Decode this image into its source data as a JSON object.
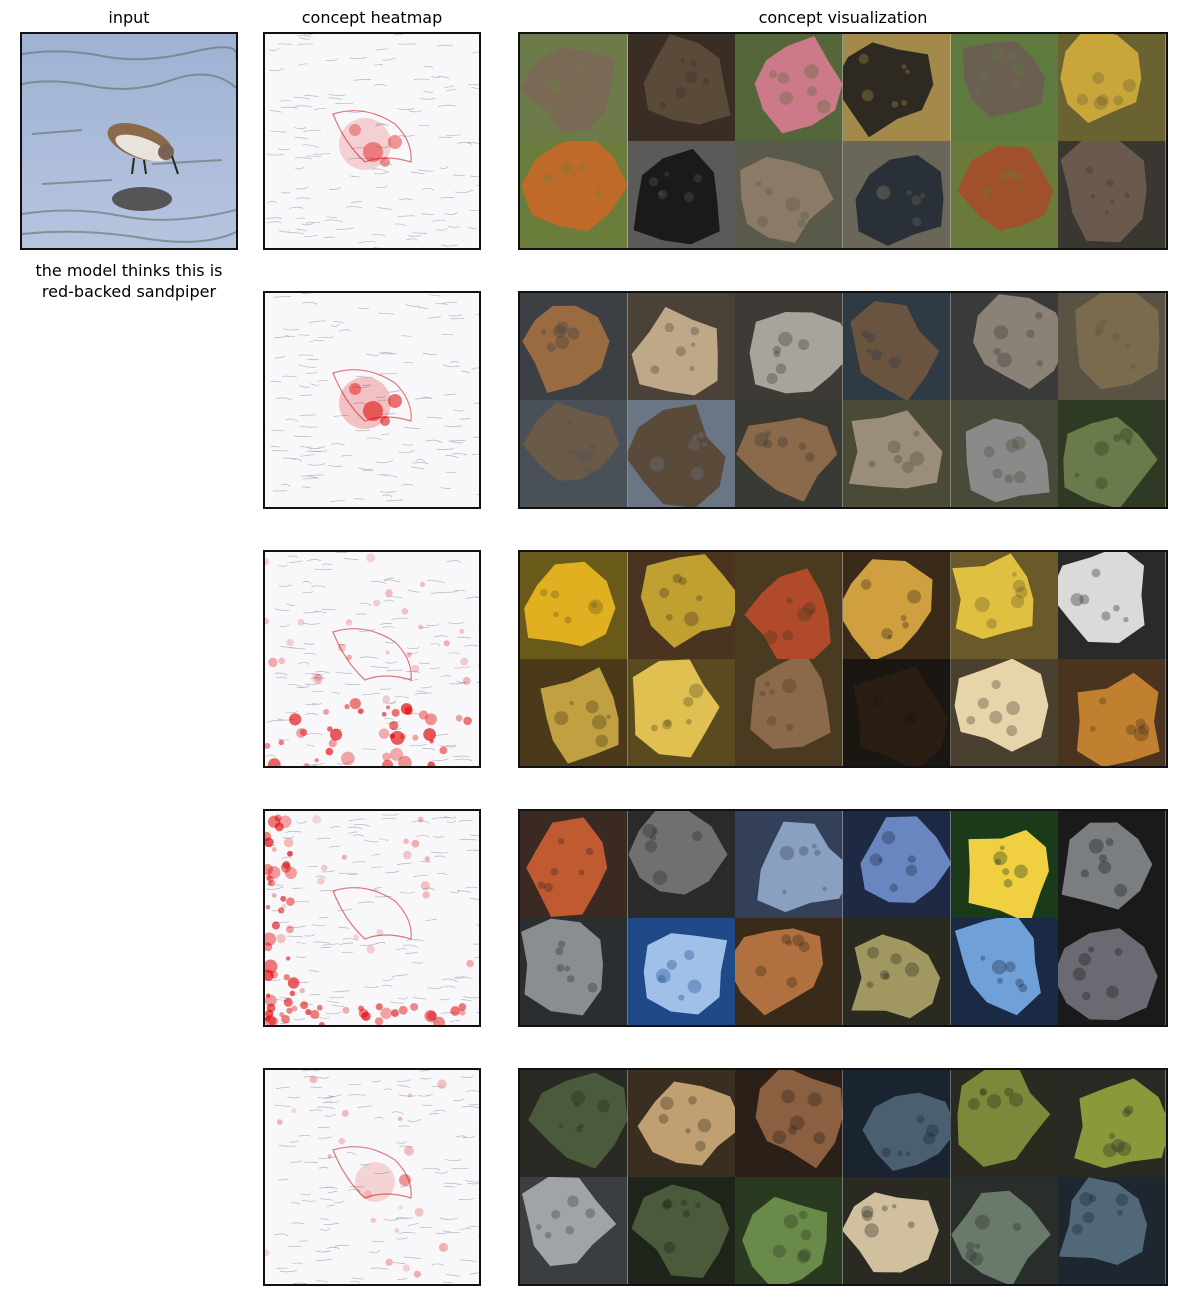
{
  "headers": {
    "input": "input",
    "heatmap": "concept heatmap",
    "visualization": "concept visualization"
  },
  "caption": "the model thinks this is\nred-backed sandpiper",
  "concepts": [
    {
      "id": 1,
      "heat_intensity": "focused-bird",
      "tiles": [
        [
          "#6d7a4a",
          "#7a6a55"
        ],
        [
          "#3a2e24",
          "#5a4a3a"
        ],
        [
          "#55663a",
          "#cc7a8a"
        ],
        [
          "#a38a4a",
          "#2e2a22"
        ],
        [
          "#5f7a3e",
          "#6b5f52"
        ],
        [
          "#6a6230",
          "#c9a63a"
        ],
        [
          "#6b7d3a",
          "#c06a2a"
        ],
        [
          "#5a5a58",
          "#1a1a1a"
        ],
        [
          "#5a5a4a",
          "#8a7a66"
        ],
        [
          "#6a6658",
          "#2a3038"
        ],
        [
          "#6a7a3a",
          "#a0502a"
        ],
        [
          "#3a3630",
          "#6a5a4e"
        ]
      ]
    },
    {
      "id": 2,
      "heat_intensity": "focused-bird-strong",
      "tiles": [
        [
          "#3c4044",
          "#9a6a40"
        ],
        [
          "#4a4238",
          "#bfa888"
        ],
        [
          "#3e3a36",
          "#a8a49c"
        ],
        [
          "#2e3a44",
          "#6a5440"
        ],
        [
          "#3a3a3a",
          "#8a8276"
        ],
        [
          "#5a5242",
          "#7a6a4e"
        ],
        [
          "#4a5058",
          "#6a5a48"
        ],
        [
          "#6a7684",
          "#5a4a3a"
        ],
        [
          "#3a3a34",
          "#8a6a4a"
        ],
        [
          "#4a4a36",
          "#9a8e7a"
        ],
        [
          "#4a4a3a",
          "#8a8a8a"
        ],
        [
          "#2e3a24",
          "#6a7a4a"
        ]
      ]
    },
    {
      "id": 3,
      "heat_intensity": "background-bottom",
      "tiles": [
        [
          "#6a5a1a",
          "#e0b020"
        ],
        [
          "#4a3420",
          "#c0a030"
        ],
        [
          "#4a3a20",
          "#b04a2a"
        ],
        [
          "#3a2a1a",
          "#d0a040"
        ],
        [
          "#6a5a2a",
          "#e0c040"
        ],
        [
          "#2a2a2a",
          "#dadada"
        ],
        [
          "#4a3a1a",
          "#c0a040"
        ],
        [
          "#5a4a20",
          "#e0c050"
        ],
        [
          "#4a3a22",
          "#8a6a4a"
        ],
        [
          "#1a1612",
          "#2a1e14"
        ],
        [
          "#4a4030",
          "#e8d4aa"
        ],
        [
          "#4a3420",
          "#c08030"
        ]
      ]
    },
    {
      "id": 4,
      "heat_intensity": "background-edges",
      "tiles": [
        [
          "#3a2a22",
          "#c05a30"
        ],
        [
          "#2a2a2a",
          "#707070"
        ],
        [
          "#34405a",
          "#8aa0c0"
        ],
        [
          "#1e2a44",
          "#6a86c0"
        ],
        [
          "#1a3a1a",
          "#f0d040"
        ],
        [
          "#1a1a1a",
          "#7a7e80"
        ],
        [
          "#2a2e30",
          "#8a8e90"
        ],
        [
          "#1e4a8a",
          "#a0c0e8"
        ],
        [
          "#3a2a1a",
          "#b07040"
        ],
        [
          "#2a2a20",
          "#a09860"
        ],
        [
          "#1a2a44",
          "#70a0d8"
        ],
        [
          "#1a1a1a",
          "#6a6a72"
        ]
      ]
    },
    {
      "id": 5,
      "heat_intensity": "mixed",
      "tiles": [
        [
          "#2a2a24",
          "#4a5a3a"
        ],
        [
          "#3a2e20",
          "#c0a070"
        ],
        [
          "#2a2018",
          "#8a6040"
        ],
        [
          "#1a2430",
          "#4a6070"
        ],
        [
          "#2a2a20",
          "#7a8a3a"
        ],
        [
          "#2a2a24",
          "#8a9a3a"
        ],
        [
          "#3a3e40",
          "#a0a4a8"
        ],
        [
          "#1e241a",
          "#4a5a3a"
        ],
        [
          "#2a3a20",
          "#6a8a4a"
        ],
        [
          "#2a2a22",
          "#d0c0a0"
        ],
        [
          "#2a2e2a",
          "#6a7a6a"
        ],
        [
          "#1e2630",
          "#506878"
        ]
      ]
    }
  ]
}
